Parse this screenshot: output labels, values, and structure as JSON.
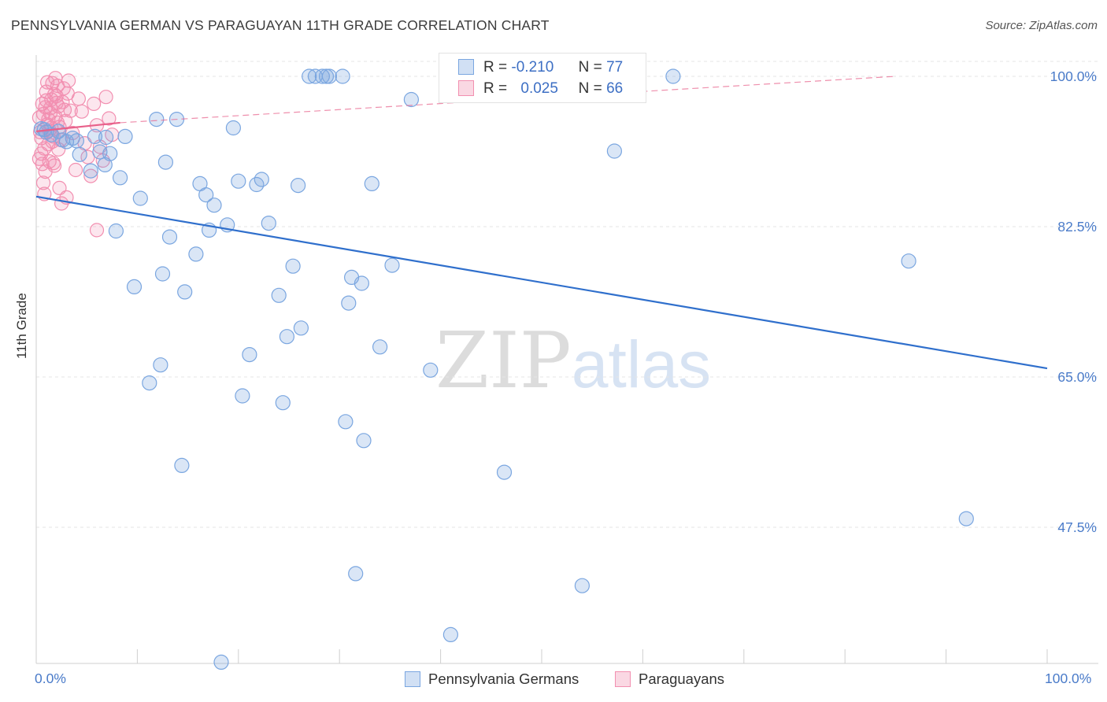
{
  "title": "PENNSYLVANIA GERMAN VS PARAGUAYAN 11TH GRADE CORRELATION CHART",
  "source": "Source: ZipAtlas.com",
  "watermark": {
    "zip": "ZIP",
    "atlas": "atlas"
  },
  "legend": {
    "r_label": "R =",
    "n_label": "N =",
    "rows": [
      {
        "name": "Pennsylvania Germans",
        "r": "-0.210",
        "n": "77",
        "color": "#7aa6e0"
      },
      {
        "name": "Paraguayans",
        "r": "0.025",
        "n": "66",
        "color": "#f28fb0"
      }
    ]
  },
  "chart_data": {
    "type": "scatter",
    "title": "PENNSYLVANIA GERMAN VS PARAGUAYAN 11TH GRADE CORRELATION CHART",
    "xlabel": "",
    "ylabel": "11th Grade",
    "xlim": [
      0,
      100
    ],
    "ylim": [
      29,
      101
    ],
    "x_tick_labels": [
      "0.0%",
      "100.0%"
    ],
    "y_ticks": [
      47.5,
      65.0,
      82.5,
      100.0
    ],
    "y_tick_labels": [
      "47.5%",
      "65.0%",
      "82.5%",
      "100.0%"
    ],
    "grid": true,
    "series": [
      {
        "name": "Pennsylvania Germans",
        "color": "#7aa6e0",
        "line_color": "#2f6fcc",
        "trend": {
          "x": [
            0,
            100
          ],
          "y": [
            86.0,
            66.0
          ],
          "style": "solid"
        },
        "points": [
          [
            0.8,
            93.8
          ],
          [
            1.5,
            93.2
          ],
          [
            2.2,
            93.6
          ],
          [
            3.0,
            92.4
          ],
          [
            3.6,
            92.8
          ],
          [
            4.3,
            90.9
          ],
          [
            5.4,
            89.0
          ],
          [
            5.8,
            93.0
          ],
          [
            6.3,
            91.2
          ],
          [
            6.8,
            89.7
          ],
          [
            6.9,
            92.9
          ],
          [
            7.3,
            91.0
          ],
          [
            7.9,
            82.0
          ],
          [
            8.3,
            88.2
          ],
          [
            8.8,
            93.0
          ],
          [
            9.7,
            75.5
          ],
          [
            10.3,
            85.8
          ],
          [
            11.2,
            64.3
          ],
          [
            11.9,
            95.0
          ],
          [
            12.3,
            66.4
          ],
          [
            12.5,
            77.0
          ],
          [
            12.8,
            90.0
          ],
          [
            13.2,
            81.3
          ],
          [
            13.9,
            95.0
          ],
          [
            14.4,
            54.7
          ],
          [
            14.7,
            74.9
          ],
          [
            15.8,
            79.3
          ],
          [
            16.2,
            87.5
          ],
          [
            16.8,
            86.2
          ],
          [
            17.1,
            82.1
          ],
          [
            17.6,
            85.0
          ],
          [
            18.3,
            31.8
          ],
          [
            18.9,
            82.7
          ],
          [
            19.5,
            94.0
          ],
          [
            20.0,
            87.8
          ],
          [
            20.4,
            62.8
          ],
          [
            21.1,
            67.6
          ],
          [
            21.8,
            87.4
          ],
          [
            22.3,
            88.0
          ],
          [
            23.0,
            82.9
          ],
          [
            24.0,
            74.5
          ],
          [
            24.4,
            62.0
          ],
          [
            24.8,
            69.7
          ],
          [
            25.4,
            77.9
          ],
          [
            25.9,
            87.3
          ],
          [
            26.2,
            70.7
          ],
          [
            27.0,
            100.0
          ],
          [
            27.6,
            100.0
          ],
          [
            28.3,
            100.0
          ],
          [
            28.7,
            100.0
          ],
          [
            29.0,
            100.0
          ],
          [
            30.3,
            100.0
          ],
          [
            30.6,
            59.8
          ],
          [
            30.9,
            73.6
          ],
          [
            31.2,
            76.6
          ],
          [
            31.6,
            42.1
          ],
          [
            32.2,
            75.9
          ],
          [
            32.4,
            57.6
          ],
          [
            33.2,
            87.5
          ],
          [
            34.0,
            68.5
          ],
          [
            35.2,
            78.0
          ],
          [
            37.1,
            97.3
          ],
          [
            39.0,
            65.8
          ],
          [
            41.0,
            35.0
          ],
          [
            43.0,
            100.0
          ],
          [
            46.3,
            53.9
          ],
          [
            48.3,
            100.0
          ],
          [
            50.0,
            100.0
          ],
          [
            54.0,
            40.7
          ],
          [
            57.2,
            91.3
          ],
          [
            63.0,
            100.0
          ],
          [
            86.3,
            78.5
          ],
          [
            92.0,
            48.5
          ],
          [
            1.0,
            93.5
          ],
          [
            2.6,
            92.6
          ],
          [
            4.0,
            92.5
          ],
          [
            0.5,
            93.9
          ]
        ]
      },
      {
        "name": "Paraguayans",
        "color": "#f28fb0",
        "line_color": "#e8608a",
        "trend": {
          "x": [
            0,
            8.3
          ],
          "y": [
            93.6,
            94.6
          ],
          "style": "solid"
        },
        "trend_extension": {
          "x": [
            8.3,
            85
          ],
          "y": [
            94.6,
            100.0
          ],
          "style": "dashed"
        },
        "points": [
          [
            0.3,
            95.2
          ],
          [
            0.4,
            93.5
          ],
          [
            0.5,
            91.0
          ],
          [
            0.6,
            89.8
          ],
          [
            0.7,
            87.6
          ],
          [
            0.8,
            86.3
          ],
          [
            0.9,
            96.4
          ],
          [
            1.0,
            98.2
          ],
          [
            1.1,
            94.4
          ],
          [
            1.2,
            92.1
          ],
          [
            1.3,
            90.1
          ],
          [
            1.4,
            95.7
          ],
          [
            1.5,
            97.3
          ],
          [
            1.6,
            99.2
          ],
          [
            1.7,
            93.0
          ],
          [
            1.8,
            89.6
          ],
          [
            1.9,
            95.3
          ],
          [
            2.0,
            97.7
          ],
          [
            2.1,
            98.9
          ],
          [
            2.2,
            96.5
          ],
          [
            2.3,
            94.1
          ],
          [
            2.4,
            92.6
          ],
          [
            2.5,
            85.2
          ],
          [
            2.6,
            97.0
          ],
          [
            2.7,
            98.6
          ],
          [
            2.8,
            96.1
          ],
          [
            2.9,
            94.8
          ],
          [
            3.0,
            85.9
          ],
          [
            3.1,
            98.0
          ],
          [
            3.2,
            99.5
          ],
          [
            0.3,
            90.4
          ],
          [
            0.5,
            92.8
          ],
          [
            0.6,
            96.8
          ],
          [
            0.7,
            95.6
          ],
          [
            0.8,
            91.6
          ],
          [
            0.9,
            88.9
          ],
          [
            1.0,
            97.2
          ],
          [
            1.1,
            99.3
          ],
          [
            1.2,
            95.0
          ],
          [
            1.3,
            93.7
          ],
          [
            1.4,
            96.3
          ],
          [
            1.5,
            94.0
          ],
          [
            1.6,
            92.4
          ],
          [
            1.7,
            89.9
          ],
          [
            1.8,
            97.9
          ],
          [
            1.9,
            99.8
          ],
          [
            2.0,
            96.9
          ],
          [
            2.1,
            94.6
          ],
          [
            2.2,
            91.5
          ],
          [
            2.3,
            87.0
          ],
          [
            3.4,
            96.0
          ],
          [
            3.6,
            93.4
          ],
          [
            3.9,
            89.1
          ],
          [
            4.2,
            97.4
          ],
          [
            4.5,
            95.9
          ],
          [
            4.8,
            92.2
          ],
          [
            5.1,
            90.6
          ],
          [
            5.4,
            88.4
          ],
          [
            5.7,
            96.8
          ],
          [
            6.0,
            94.3
          ],
          [
            6.3,
            91.8
          ],
          [
            6.6,
            90.2
          ],
          [
            6.9,
            97.6
          ],
          [
            7.2,
            95.1
          ],
          [
            7.5,
            93.2
          ],
          [
            6.0,
            82.1
          ]
        ]
      }
    ]
  }
}
